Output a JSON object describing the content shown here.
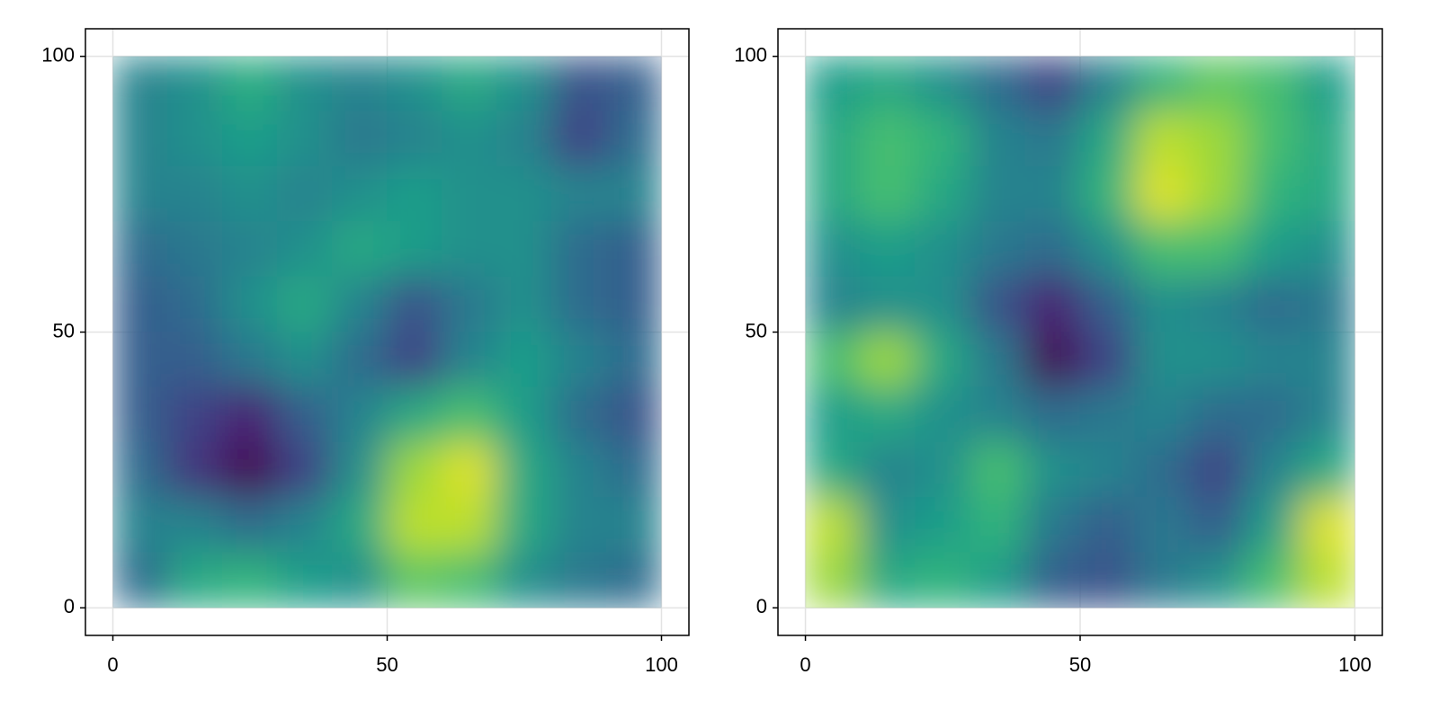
{
  "chart_data": [
    {
      "type": "heatmap",
      "colormap": "viridis",
      "clim": [
        0,
        1
      ],
      "x": [
        5,
        15,
        25,
        35,
        45,
        55,
        65,
        75,
        85,
        95
      ],
      "y": [
        95,
        85,
        75,
        65,
        55,
        45,
        35,
        25,
        15,
        5
      ],
      "z": [
        [
          0.45,
          0.5,
          0.62,
          0.5,
          0.45,
          0.5,
          0.6,
          0.5,
          0.25,
          0.3
        ],
        [
          0.45,
          0.5,
          0.55,
          0.5,
          0.4,
          0.45,
          0.5,
          0.45,
          0.2,
          0.35
        ],
        [
          0.45,
          0.45,
          0.5,
          0.45,
          0.5,
          0.55,
          0.5,
          0.5,
          0.45,
          0.45
        ],
        [
          0.35,
          0.4,
          0.45,
          0.5,
          0.6,
          0.55,
          0.5,
          0.5,
          0.35,
          0.3
        ],
        [
          0.3,
          0.35,
          0.5,
          0.6,
          0.45,
          0.25,
          0.4,
          0.5,
          0.35,
          0.3
        ],
        [
          0.3,
          0.3,
          0.4,
          0.5,
          0.35,
          0.2,
          0.45,
          0.55,
          0.45,
          0.35
        ],
        [
          0.3,
          0.2,
          0.1,
          0.3,
          0.45,
          0.6,
          0.7,
          0.55,
          0.35,
          0.25
        ],
        [
          0.35,
          0.15,
          0.0,
          0.2,
          0.5,
          0.85,
          0.95,
          0.6,
          0.45,
          0.35
        ],
        [
          0.45,
          0.45,
          0.35,
          0.45,
          0.6,
          0.9,
          0.9,
          0.6,
          0.45,
          0.45
        ],
        [
          0.35,
          0.6,
          0.65,
          0.55,
          0.5,
          0.75,
          0.7,
          0.5,
          0.4,
          0.35
        ]
      ],
      "xlim": [
        -5,
        105
      ],
      "ylim": [
        -5,
        105
      ],
      "xticks": [
        0,
        50,
        100
      ],
      "yticks": [
        0,
        50,
        100
      ],
      "grid": true
    },
    {
      "type": "heatmap",
      "colormap": "viridis",
      "clim": [
        0,
        1
      ],
      "x": [
        5,
        15,
        25,
        35,
        45,
        55,
        65,
        75,
        85,
        95
      ],
      "y": [
        95,
        85,
        75,
        65,
        55,
        45,
        35,
        25,
        15,
        5
      ],
      "z": [
        [
          0.55,
          0.6,
          0.5,
          0.35,
          0.2,
          0.45,
          0.65,
          0.75,
          0.7,
          0.55
        ],
        [
          0.6,
          0.7,
          0.65,
          0.45,
          0.4,
          0.6,
          0.9,
          0.85,
          0.7,
          0.6
        ],
        [
          0.6,
          0.7,
          0.6,
          0.45,
          0.45,
          0.65,
          0.95,
          0.85,
          0.65,
          0.6
        ],
        [
          0.5,
          0.55,
          0.5,
          0.4,
          0.35,
          0.5,
          0.7,
          0.7,
          0.55,
          0.5
        ],
        [
          0.45,
          0.5,
          0.5,
          0.25,
          0.1,
          0.3,
          0.5,
          0.45,
          0.35,
          0.4
        ],
        [
          0.7,
          0.85,
          0.6,
          0.4,
          0.0,
          0.2,
          0.5,
          0.5,
          0.45,
          0.45
        ],
        [
          0.55,
          0.6,
          0.5,
          0.45,
          0.35,
          0.4,
          0.45,
          0.35,
          0.35,
          0.45
        ],
        [
          0.6,
          0.45,
          0.5,
          0.7,
          0.5,
          0.45,
          0.35,
          0.2,
          0.45,
          0.6
        ],
        [
          0.9,
          0.5,
          0.55,
          0.65,
          0.4,
          0.3,
          0.4,
          0.3,
          0.55,
          0.95
        ],
        [
          0.85,
          0.6,
          0.65,
          0.55,
          0.3,
          0.25,
          0.4,
          0.5,
          0.7,
          0.9
        ]
      ],
      "xlim": [
        -5,
        105
      ],
      "ylim": [
        -5,
        105
      ],
      "xticks": [
        0,
        50,
        100
      ],
      "yticks": [
        0,
        50,
        100
      ],
      "grid": true
    }
  ]
}
